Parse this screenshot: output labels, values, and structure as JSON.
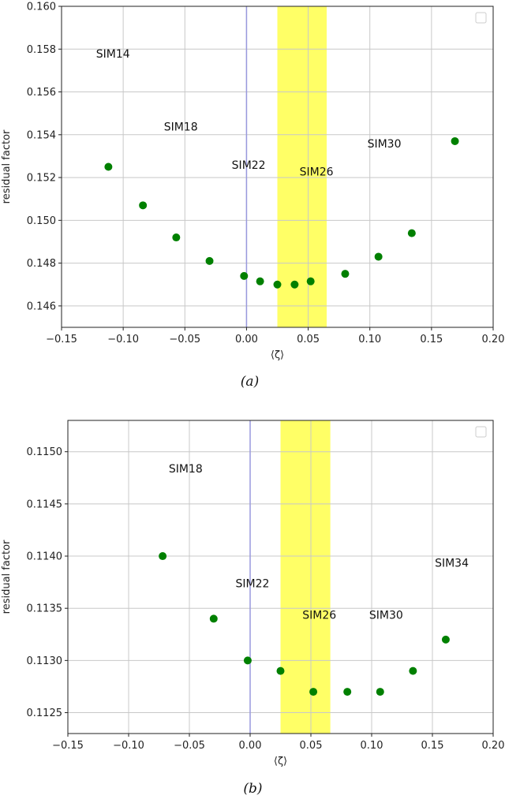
{
  "chart_data": [
    {
      "type": "scatter",
      "caption": "(a)",
      "xlabel": "⟨ζ⟩",
      "ylabel": "residual factor",
      "xlim": [
        -0.15,
        0.2
      ],
      "ylim": [
        0.145,
        0.16
      ],
      "xticks": [
        -0.15,
        -0.1,
        -0.05,
        0.0,
        0.05,
        0.1,
        0.15,
        0.2
      ],
      "xtick_labels": [
        "−0.15",
        "−0.10",
        "−0.05",
        "0.00",
        "0.05",
        "0.10",
        "0.15",
        "0.20"
      ],
      "yticks": [
        0.146,
        0.148,
        0.15,
        0.152,
        0.154,
        0.156,
        0.158,
        0.16
      ],
      "ytick_labels": [
        "0.146",
        "0.148",
        "0.150",
        "0.152",
        "0.154",
        "0.156",
        "0.158",
        "0.160"
      ],
      "grid": true,
      "legend": "top-right (empty)",
      "vline_x": 0.0,
      "band_x": [
        0.025,
        0.065
      ],
      "points": [
        {
          "x": -0.112,
          "y": 0.1525
        },
        {
          "x": -0.084,
          "y": 0.1507
        },
        {
          "x": -0.057,
          "y": 0.1492
        },
        {
          "x": -0.03,
          "y": 0.1481
        },
        {
          "x": -0.002,
          "y": 0.1474
        },
        {
          "x": 0.011,
          "y": 0.14715
        },
        {
          "x": 0.025,
          "y": 0.147
        },
        {
          "x": 0.039,
          "y": 0.147
        },
        {
          "x": 0.052,
          "y": 0.14715
        },
        {
          "x": 0.08,
          "y": 0.1475
        },
        {
          "x": 0.107,
          "y": 0.1483
        },
        {
          "x": 0.134,
          "y": 0.1494
        },
        {
          "x": 0.169,
          "y": 0.1537
        }
      ],
      "annotations": [
        {
          "text": "SIM14",
          "x": -0.122,
          "y": 0.1576
        },
        {
          "text": "SIM18",
          "x": -0.067,
          "y": 0.1542
        },
        {
          "text": "SIM22",
          "x": -0.012,
          "y": 0.1524
        },
        {
          "text": "SIM26",
          "x": 0.043,
          "y": 0.1521
        },
        {
          "text": "SIM30",
          "x": 0.098,
          "y": 0.1534
        }
      ],
      "colors": {
        "points": "#008000",
        "vline": "#9999dd",
        "band": "#ffff66",
        "grid": "#c8c8c8"
      }
    },
    {
      "type": "scatter",
      "caption": "(b)",
      "xlabel": "⟨ζ⟩",
      "ylabel": "residual factor",
      "xlim": [
        -0.15,
        0.2
      ],
      "ylim": [
        0.1123,
        0.1153
      ],
      "xticks": [
        -0.15,
        -0.1,
        -0.05,
        0.0,
        0.05,
        0.1,
        0.15,
        0.2
      ],
      "xtick_labels": [
        "−0.15",
        "−0.10",
        "−0.05",
        "0.00",
        "0.05",
        "0.10",
        "0.15",
        "0.20"
      ],
      "yticks": [
        0.1125,
        0.113,
        0.1135,
        0.114,
        0.1145,
        0.115
      ],
      "ytick_labels": [
        "0.1125",
        "0.1130",
        "0.1135",
        "0.1140",
        "0.1145",
        "0.1150"
      ],
      "grid": true,
      "legend": "top-right (empty)",
      "vline_x": 0.0,
      "band_x": [
        0.025,
        0.066
      ],
      "points": [
        {
          "x": -0.072,
          "y": 0.114
        },
        {
          "x": -0.03,
          "y": 0.1134
        },
        {
          "x": -0.002,
          "y": 0.113
        },
        {
          "x": 0.025,
          "y": 0.1129
        },
        {
          "x": 0.052,
          "y": 0.1127
        },
        {
          "x": 0.08,
          "y": 0.1127
        },
        {
          "x": 0.107,
          "y": 0.1127
        },
        {
          "x": 0.134,
          "y": 0.1129
        },
        {
          "x": 0.161,
          "y": 0.1132
        }
      ],
      "annotations": [
        {
          "text": "SIM18",
          "x": -0.067,
          "y": 0.1148
        },
        {
          "text": "SIM22",
          "x": -0.012,
          "y": 0.1137
        },
        {
          "text": "SIM26",
          "x": 0.043,
          "y": 0.1134
        },
        {
          "text": "SIM30",
          "x": 0.098,
          "y": 0.1134
        },
        {
          "text": "SIM34",
          "x": 0.152,
          "y": 0.1139
        }
      ],
      "colors": {
        "points": "#008000",
        "vline": "#9999dd",
        "band": "#ffff66",
        "grid": "#c8c8c8"
      }
    }
  ]
}
